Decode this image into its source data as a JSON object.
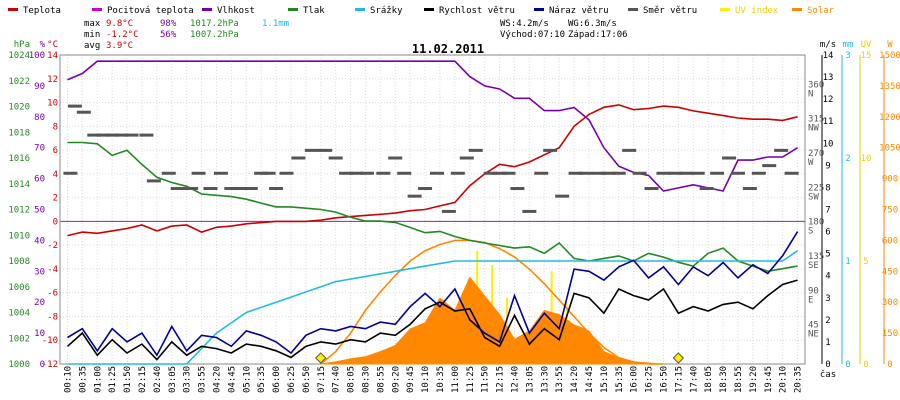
{
  "legend": [
    {
      "label": "Teplota",
      "color": "#cc0000"
    },
    {
      "label": "Pocitová teplota",
      "color": "#cc00cc"
    },
    {
      "label": "Vlhkost",
      "color": "#7700aa"
    },
    {
      "label": "Tlak",
      "color": "#228822"
    },
    {
      "label": "Srážky",
      "color": "#22bbdd"
    },
    {
      "label": "Rychlost větru",
      "color": "#000000"
    },
    {
      "label": "Náraz větru",
      "color": "#000099"
    },
    {
      "label": "Směr větru",
      "color": "#555555"
    },
    {
      "label": "UV index",
      "color": "#ffee00"
    },
    {
      "label": "Solar",
      "color": "#ff8800"
    }
  ],
  "stats": {
    "max_label": "max",
    "max_temp": "9.8°C",
    "max_hum": "98%",
    "max_press": "1017.2hPa",
    "max_rain": "1.1mm",
    "min_label": "min",
    "min_temp": "-1.2°C",
    "min_hum": "56%",
    "min_press": "1007.2hPa",
    "avg_label": "avg",
    "avg_temp": "3.9°C",
    "ws": "WS:4.2m/s",
    "wg": "WG:6.3m/s",
    "sunrise": "Východ:07:10",
    "sunset": "Západ:17:06"
  },
  "chart_data": {
    "type": "line",
    "title": "11.02.2011",
    "xlabel": "čas",
    "x_ticks": [
      "00:10",
      "00:35",
      "01:00",
      "01:25",
      "01:50",
      "02:15",
      "02:40",
      "03:05",
      "03:30",
      "03:55",
      "04:20",
      "04:45",
      "05:10",
      "05:35",
      "06:00",
      "06:25",
      "06:50",
      "07:15",
      "07:40",
      "08:05",
      "08:30",
      "08:55",
      "09:20",
      "09:45",
      "10:10",
      "10:35",
      "11:00",
      "11:25",
      "11:50",
      "12:15",
      "12:40",
      "13:05",
      "13:30",
      "13:55",
      "14:20",
      "14:45",
      "15:10",
      "15:35",
      "16:00",
      "16:25",
      "16:50",
      "17:15",
      "17:40",
      "18:05",
      "18:30",
      "18:55",
      "19:20",
      "19:45",
      "20:10",
      "20:35"
    ],
    "axes": {
      "pressure": {
        "label": "hPa",
        "range": [
          1000,
          1024
        ],
        "ticks": [
          "1000",
          "1002",
          "1004",
          "1006",
          "1008",
          "1010",
          "1012",
          "1014",
          "1016",
          "1018",
          "1020",
          "1022",
          "1024"
        ]
      },
      "humidity": {
        "label": "%",
        "range": [
          0,
          100
        ],
        "ticks": [
          "0",
          "10",
          "20",
          "30",
          "40",
          "50",
          "60",
          "70",
          "80",
          "90",
          "100"
        ]
      },
      "temperature": {
        "label": "°C",
        "range": [
          -12,
          14
        ],
        "ticks": [
          "-12",
          "-10",
          "-8",
          "-6",
          "-4",
          "-2",
          "0",
          "2",
          "4",
          "6",
          "8",
          "10",
          "12",
          "14"
        ]
      },
      "direction": {
        "ticks": [
          "NE",
          "E",
          "SE",
          "S",
          "SW",
          "W",
          "NW",
          "N"
        ],
        "degrees": [
          "45",
          "90",
          "135",
          "180",
          "225",
          "270",
          "315",
          "360"
        ]
      },
      "wind": {
        "label": "m/s",
        "range": [
          0,
          14
        ],
        "ticks": [
          "0",
          "1",
          "2",
          "3",
          "4",
          "5",
          "6",
          "7",
          "8",
          "9",
          "10",
          "11",
          "12",
          "13",
          "14"
        ]
      },
      "rain": {
        "label": "mm",
        "range": [
          0,
          3
        ],
        "ticks": [
          "0",
          "1",
          "2",
          "3"
        ]
      },
      "uv": {
        "label": "UV",
        "range": [
          0,
          15
        ],
        "ticks": [
          "0",
          "5",
          "10",
          "15"
        ]
      },
      "solar": {
        "label": "W",
        "range": [
          0,
          1500
        ],
        "ticks": [
          "0",
          "150",
          "300",
          "450",
          "600",
          "750",
          "900",
          "1050",
          "1200",
          "1350",
          "1500"
        ]
      }
    },
    "series": [
      {
        "name": "Teplota",
        "axis": "temperature",
        "color": "#cc0000",
        "x": [
          0,
          1,
          2,
          3,
          4,
          5,
          6,
          7,
          8,
          9,
          10,
          11,
          12,
          13,
          14,
          15,
          16,
          17,
          18,
          19,
          20,
          21,
          22,
          23,
          24,
          25,
          26,
          27,
          28,
          29,
          30,
          31,
          32,
          33,
          34,
          35,
          36,
          37,
          38,
          39,
          40,
          41,
          42,
          43,
          44,
          45,
          46,
          47,
          48,
          49
        ],
        "values": [
          -1.2,
          -0.9,
          -1.0,
          -0.8,
          -0.6,
          -0.3,
          -0.8,
          -0.4,
          -0.3,
          -0.9,
          -0.5,
          -0.4,
          -0.2,
          -0.1,
          0.0,
          0.0,
          0.0,
          0.1,
          0.3,
          0.4,
          0.5,
          0.6,
          0.7,
          0.9,
          1.0,
          1.3,
          1.6,
          3.0,
          4.0,
          4.8,
          4.6,
          5.0,
          5.6,
          6.2,
          8.0,
          9.0,
          9.6,
          9.8,
          9.4,
          9.5,
          9.7,
          9.6,
          9.3,
          9.1,
          8.9,
          8.7,
          8.6,
          8.6,
          8.5,
          8.8
        ]
      },
      {
        "name": "Vlhkost",
        "axis": "humidity",
        "color": "#7700aa",
        "x": [
          0,
          1,
          2,
          3,
          4,
          5,
          6,
          7,
          8,
          9,
          10,
          11,
          12,
          13,
          14,
          15,
          16,
          17,
          18,
          19,
          20,
          21,
          22,
          23,
          24,
          25,
          26,
          27,
          28,
          29,
          30,
          31,
          32,
          33,
          34,
          35,
          36,
          37,
          38,
          39,
          40,
          41,
          42,
          43,
          44,
          45,
          46,
          47,
          48,
          49
        ],
        "values": [
          92,
          94,
          98,
          98,
          98,
          98,
          98,
          98,
          98,
          98,
          98,
          98,
          98,
          98,
          98,
          98,
          98,
          98,
          98,
          98,
          98,
          98,
          98,
          98,
          98,
          98,
          98,
          93,
          90,
          89,
          86,
          86,
          82,
          82,
          83,
          79,
          70,
          64,
          62,
          61,
          56,
          57,
          58,
          57,
          56,
          66,
          66,
          67,
          67,
          70
        ]
      },
      {
        "name": "Tlak",
        "axis": "pressure",
        "color": "#228822",
        "x": [
          0,
          1,
          2,
          3,
          4,
          5,
          6,
          7,
          8,
          9,
          10,
          11,
          12,
          13,
          14,
          15,
          16,
          17,
          18,
          19,
          20,
          21,
          22,
          23,
          24,
          25,
          26,
          27,
          28,
          29,
          30,
          31,
          32,
          33,
          34,
          35,
          36,
          37,
          38,
          39,
          40,
          41,
          42,
          43,
          44,
          45,
          46,
          47,
          48,
          49
        ],
        "values": [
          1017.2,
          1017.2,
          1017.1,
          1016.2,
          1016.6,
          1015.5,
          1014.5,
          1014.1,
          1013.8,
          1013.2,
          1013.1,
          1013.0,
          1012.8,
          1012.5,
          1012.2,
          1012.2,
          1012.1,
          1012.0,
          1011.8,
          1011.4,
          1011.1,
          1011.1,
          1011.0,
          1010.6,
          1010.2,
          1010.3,
          1009.9,
          1009.6,
          1009.4,
          1009.2,
          1009.0,
          1009.1,
          1008.6,
          1009.4,
          1008.2,
          1008.0,
          1008.2,
          1008.4,
          1008.0,
          1008.6,
          1008.3,
          1007.9,
          1007.6,
          1008.6,
          1009.0,
          1008.0,
          1007.6,
          1007.2,
          1007.4,
          1007.6
        ]
      },
      {
        "name": "Srážky",
        "axis": "rain",
        "color": "#22bbdd",
        "x": [
          0,
          8,
          10,
          12,
          14,
          18,
          22,
          24,
          26,
          28,
          30,
          34,
          38,
          42,
          46,
          48,
          49
        ],
        "values": [
          0.0,
          0.0,
          0.3,
          0.5,
          0.6,
          0.8,
          0.9,
          0.95,
          1.0,
          1.0,
          1.0,
          1.0,
          1.0,
          1.0,
          1.0,
          1.0,
          1.1
        ]
      },
      {
        "name": "Rychlost větru",
        "axis": "wind",
        "color": "#000000",
        "x": [
          0,
          1,
          2,
          3,
          4,
          5,
          6,
          7,
          8,
          9,
          10,
          11,
          12,
          13,
          14,
          15,
          16,
          17,
          18,
          19,
          20,
          21,
          22,
          23,
          24,
          25,
          26,
          27,
          28,
          29,
          30,
          31,
          32,
          33,
          34,
          35,
          36,
          37,
          38,
          39,
          40,
          41,
          42,
          43,
          44,
          45,
          46,
          47,
          48,
          49
        ],
        "values": [
          0.8,
          1.4,
          0.4,
          1.1,
          0.5,
          0.9,
          0.2,
          1.0,
          0.4,
          0.8,
          0.7,
          0.5,
          0.9,
          0.8,
          0.6,
          0.3,
          0.8,
          1.0,
          0.9,
          1.1,
          1.0,
          1.4,
          1.3,
          1.8,
          2.5,
          2.8,
          2.4,
          2.5,
          1.2,
          0.8,
          2.2,
          0.9,
          1.6,
          1.1,
          3.2,
          3.0,
          2.3,
          3.4,
          3.1,
          2.9,
          3.4,
          2.3,
          2.6,
          2.4,
          2.7,
          2.8,
          2.5,
          3.1,
          3.6,
          3.8
        ]
      },
      {
        "name": "Náraz větru",
        "axis": "wind",
        "color": "#000099",
        "x": [
          0,
          1,
          2,
          3,
          4,
          5,
          6,
          7,
          8,
          9,
          10,
          11,
          12,
          13,
          14,
          15,
          16,
          17,
          18,
          19,
          20,
          21,
          22,
          23,
          24,
          25,
          26,
          27,
          28,
          29,
          30,
          31,
          32,
          33,
          34,
          35,
          36,
          37,
          38,
          39,
          40,
          41,
          42,
          43,
          44,
          45,
          46,
          47,
          48,
          49
        ],
        "values": [
          1.2,
          1.6,
          0.6,
          1.6,
          1.0,
          1.4,
          0.4,
          1.7,
          0.6,
          1.3,
          1.2,
          0.8,
          1.5,
          1.3,
          1.0,
          0.5,
          1.3,
          1.6,
          1.5,
          1.7,
          1.6,
          1.9,
          1.8,
          2.6,
          3.2,
          2.6,
          3.4,
          2.0,
          1.4,
          1.0,
          3.1,
          1.4,
          2.3,
          1.6,
          4.3,
          4.2,
          3.8,
          4.4,
          4.7,
          3.9,
          4.4,
          3.6,
          4.4,
          4.0,
          4.6,
          3.9,
          4.5,
          4.1,
          4.9,
          6.0
        ]
      },
      {
        "name": "Směr větru",
        "axis": "direction",
        "color": "#555555",
        "type": "scatter",
        "x": [
          0.2,
          0.5,
          1.1,
          1.8,
          2.4,
          3.0,
          3.6,
          4.3,
          5.3,
          5.8,
          6.8,
          7.4,
          8.3,
          8.8,
          9.6,
          10.3,
          11.0,
          11.7,
          12.3,
          13.0,
          13.5,
          14.0,
          14.7,
          15.5,
          16.4,
          17.3,
          18.0,
          18.7,
          19.4,
          20.1,
          21.2,
          22.0,
          22.6,
          23.3,
          24.0,
          24.8,
          25.6,
          26.2,
          26.8,
          27.4,
          28.4,
          29.0,
          29.6,
          30.2,
          31.0,
          31.8,
          32.4,
          33.2,
          34.1,
          34.8,
          35.7,
          36.3,
          37.0,
          37.7,
          38.4,
          39.2,
          40.0,
          40.8,
          41.5,
          42.3,
          42.9,
          43.6,
          44.4,
          45.0,
          45.8,
          46.4,
          47.1,
          47.9,
          48.6
        ],
        "values": [
          250,
          338,
          330,
          300,
          300,
          300,
          300,
          300,
          300,
          240,
          250,
          230,
          230,
          250,
          230,
          250,
          230,
          230,
          230,
          250,
          250,
          230,
          250,
          270,
          280,
          280,
          270,
          250,
          250,
          250,
          250,
          270,
          250,
          220,
          230,
          250,
          200,
          250,
          270,
          280,
          250,
          250,
          250,
          230,
          200,
          250,
          280,
          220,
          250,
          250,
          250,
          250,
          250,
          280,
          250,
          230,
          250,
          250,
          250,
          250,
          230,
          250,
          270,
          250,
          230,
          250,
          260,
          280,
          250
        ]
      },
      {
        "name": "UV index",
        "axis": "uv",
        "color": "#ffee00",
        "x": [
          22,
          24,
          26,
          27,
          27.5,
          28,
          28.5,
          29,
          29.5,
          30,
          31,
          32,
          32.5,
          33,
          33.5,
          34,
          35
        ],
        "values": [
          0,
          0.5,
          1.5,
          3.0,
          5.5,
          2.0,
          4.8,
          1.5,
          3.2,
          1.0,
          1.2,
          2.5,
          4.5,
          1.8,
          3.0,
          0.5,
          0
        ]
      },
      {
        "name": "Solar",
        "axis": "solar",
        "color": "#ff8800",
        "x": [
          17,
          18,
          19,
          20,
          21,
          22,
          23,
          24,
          25,
          26,
          27,
          28,
          29,
          30,
          31,
          32,
          33,
          34,
          35,
          36,
          37,
          38,
          39,
          40
        ],
        "values": [
          0,
          10,
          25,
          35,
          60,
          90,
          170,
          200,
          320,
          260,
          420,
          330,
          240,
          120,
          160,
          260,
          240,
          190,
          160,
          60,
          30,
          10,
          5,
          0
        ]
      },
      {
        "name": "Solar max",
        "axis": "solar",
        "color": "#ff8800",
        "x": [
          17,
          18,
          19,
          20,
          21,
          22,
          23,
          24,
          25,
          26,
          27,
          28,
          29,
          30,
          31,
          32,
          33,
          34,
          35,
          36,
          37,
          38,
          39,
          40
        ],
        "values": [
          0,
          60,
          150,
          260,
          350,
          430,
          500,
          550,
          580,
          600,
          600,
          590,
          560,
          520,
          460,
          390,
          310,
          230,
          150,
          80,
          30,
          10,
          0,
          0
        ]
      }
    ]
  }
}
